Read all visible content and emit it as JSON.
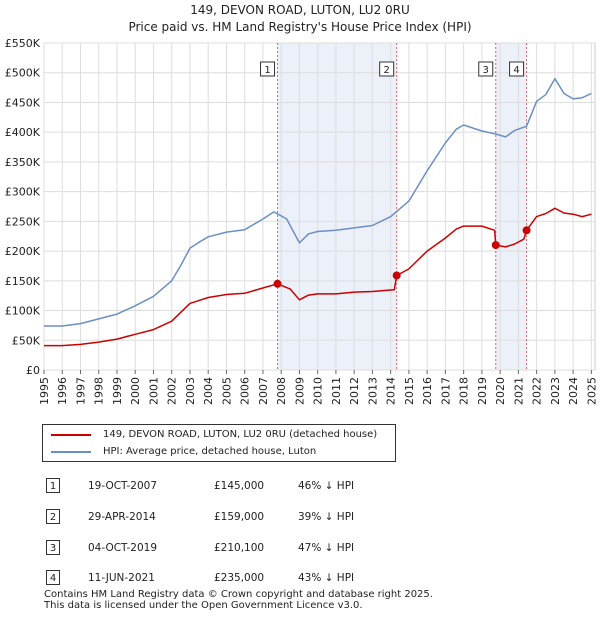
{
  "chart_data": {
    "type": "line",
    "title": "149, DEVON ROAD, LUTON, LU2 0RU",
    "subtitle": "Price paid vs. HM Land Registry's House Price Index (HPI)",
    "xlabel": "",
    "ylabel": "",
    "xlim": [
      1995,
      2025.2
    ],
    "ylim": [
      0,
      550000
    ],
    "x_ticks": [
      1995,
      1996,
      1997,
      1998,
      1999,
      2000,
      2001,
      2002,
      2003,
      2004,
      2005,
      2006,
      2007,
      2008,
      2009,
      2010,
      2011,
      2012,
      2013,
      2014,
      2015,
      2016,
      2017,
      2018,
      2019,
      2020,
      2021,
      2022,
      2023,
      2024,
      2025
    ],
    "y_ticks": [
      {
        "value": 0,
        "label": "£0"
      },
      {
        "value": 50000,
        "label": "£50K"
      },
      {
        "value": 100000,
        "label": "£100K"
      },
      {
        "value": 150000,
        "label": "£150K"
      },
      {
        "value": 200000,
        "label": "£200K"
      },
      {
        "value": 250000,
        "label": "£250K"
      },
      {
        "value": 300000,
        "label": "£300K"
      },
      {
        "value": 350000,
        "label": "£350K"
      },
      {
        "value": 400000,
        "label": "£400K"
      },
      {
        "value": 450000,
        "label": "£450K"
      },
      {
        "value": 500000,
        "label": "£500K"
      },
      {
        "value": 550000,
        "label": "£550K"
      }
    ],
    "grid": true,
    "shaded_periods": [
      {
        "from": 2007.8,
        "to": 2014.33
      },
      {
        "from": 2019.76,
        "to": 2021.45
      }
    ],
    "series": [
      {
        "name": "149, DEVON ROAD, LUTON, LU2 0RU (detached house)",
        "color": "#cc0000",
        "points": [
          [
            1995.0,
            41000
          ],
          [
            1996.0,
            41000
          ],
          [
            1997.0,
            43000
          ],
          [
            1998.0,
            47000
          ],
          [
            1999.0,
            52000
          ],
          [
            2000.0,
            60000
          ],
          [
            2001.0,
            68000
          ],
          [
            2002.0,
            82000
          ],
          [
            2002.5,
            97000
          ],
          [
            2003.0,
            112000
          ],
          [
            2003.5,
            117000
          ],
          [
            2004.0,
            122000
          ],
          [
            2005.0,
            127000
          ],
          [
            2006.0,
            129000
          ],
          [
            2007.0,
            138000
          ],
          [
            2007.8,
            145000
          ],
          [
            2008.5,
            136000
          ],
          [
            2009.0,
            118000
          ],
          [
            2009.5,
            126000
          ],
          [
            2010.0,
            128000
          ],
          [
            2011.0,
            128000
          ],
          [
            2012.0,
            131000
          ],
          [
            2013.0,
            132000
          ],
          [
            2014.2,
            135000
          ],
          [
            2014.33,
            159000
          ],
          [
            2015.0,
            170000
          ],
          [
            2016.0,
            200000
          ],
          [
            2017.0,
            222000
          ],
          [
            2017.6,
            237000
          ],
          [
            2018.0,
            242000
          ],
          [
            2019.0,
            242000
          ],
          [
            2019.7,
            235000
          ],
          [
            2019.76,
            210100
          ],
          [
            2020.3,
            207000
          ],
          [
            2020.8,
            212000
          ],
          [
            2021.3,
            220000
          ],
          [
            2021.45,
            235000
          ],
          [
            2022.0,
            258000
          ],
          [
            2022.5,
            263000
          ],
          [
            2023.0,
            272000
          ],
          [
            2023.5,
            264000
          ],
          [
            2024.0,
            262000
          ],
          [
            2024.5,
            258000
          ],
          [
            2025.0,
            262000
          ]
        ]
      },
      {
        "name": "HPI: Average price, detached house, Luton",
        "color": "#6a8fc7",
        "points": [
          [
            1995.0,
            74000
          ],
          [
            1996.0,
            74000
          ],
          [
            1997.0,
            78000
          ],
          [
            1998.0,
            86000
          ],
          [
            1999.0,
            94000
          ],
          [
            2000.0,
            108000
          ],
          [
            2001.0,
            124000
          ],
          [
            2002.0,
            150000
          ],
          [
            2002.5,
            176000
          ],
          [
            2003.0,
            205000
          ],
          [
            2003.5,
            215000
          ],
          [
            2004.0,
            224000
          ],
          [
            2005.0,
            232000
          ],
          [
            2006.0,
            236000
          ],
          [
            2007.0,
            254000
          ],
          [
            2007.6,
            266000
          ],
          [
            2008.3,
            254000
          ],
          [
            2009.0,
            214000
          ],
          [
            2009.5,
            229000
          ],
          [
            2010.0,
            233000
          ],
          [
            2011.0,
            235000
          ],
          [
            2012.0,
            239000
          ],
          [
            2013.0,
            243000
          ],
          [
            2014.0,
            258000
          ],
          [
            2015.0,
            284000
          ],
          [
            2016.0,
            335000
          ],
          [
            2017.0,
            382000
          ],
          [
            2017.6,
            405000
          ],
          [
            2018.0,
            412000
          ],
          [
            2019.0,
            402000
          ],
          [
            2019.76,
            397000
          ],
          [
            2020.3,
            392000
          ],
          [
            2020.8,
            403000
          ],
          [
            2021.45,
            410000
          ],
          [
            2022.0,
            452000
          ],
          [
            2022.5,
            463000
          ],
          [
            2023.0,
            490000
          ],
          [
            2023.5,
            465000
          ],
          [
            2024.0,
            456000
          ],
          [
            2024.5,
            458000
          ],
          [
            2025.0,
            465000
          ]
        ]
      }
    ],
    "sales": [
      {
        "num": "1",
        "date": "19-OCT-2007",
        "x": 2007.8,
        "price": 145000,
        "price_label": "£145,000",
        "hpi": "46% ↓ HPI"
      },
      {
        "num": "2",
        "date": "29-APR-2014",
        "x": 2014.33,
        "price": 159000,
        "price_label": "£159,000",
        "hpi": "39% ↓ HPI"
      },
      {
        "num": "3",
        "date": "04-OCT-2019",
        "x": 2019.76,
        "price": 210100,
        "price_label": "£210,100",
        "hpi": "47% ↓ HPI"
      },
      {
        "num": "4",
        "date": "11-JUN-2021",
        "x": 2021.45,
        "price": 235000,
        "price_label": "£235,000",
        "hpi": "43% ↓ HPI"
      }
    ]
  },
  "legend": {
    "property_label": "149, DEVON ROAD, LUTON, LU2 0RU (detached house)",
    "hpi_label": "HPI: Average price, detached house, Luton",
    "property_color": "#cc0000",
    "hpi_color": "#6a8fc7"
  },
  "footer": {
    "line1": "Contains HM Land Registry data © Crown copyright and database right 2025.",
    "line2": "This data is licensed under the Open Government Licence v3.0."
  }
}
